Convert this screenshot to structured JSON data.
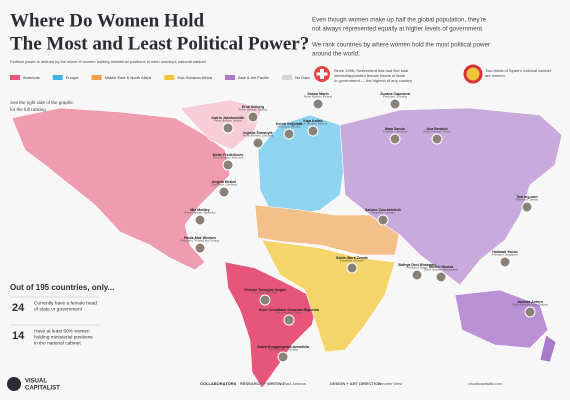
{
  "header": {
    "title_line1": "Where Do Women Hold",
    "title_line2": "The Most and Least Political Power?",
    "subtitle": "Political power is defined by the share of women holding ministerial positions in each country's national cabinet."
  },
  "intro": [
    "Even though women make up half the global population, they're",
    "not always represented equally at higher levels of government.",
    "We rank countries by where women hold the most political power",
    "around the world."
  ],
  "callouts": [
    {
      "lines": [
        "Since 1996, Switzerland has had five total",
        "elected/appointed female heads of state",
        "or government — the highest of any country"
      ]
    },
    {
      "lines": [
        "Two-thirds of Spain's national cabinet",
        "are women."
      ]
    }
  ],
  "legend": [
    {
      "name": "Americas",
      "color": "#e8557a"
    },
    {
      "name": "Europe",
      "color": "#41b4e3"
    },
    {
      "name": "Middle East & North Africa",
      "color": "#f0a048"
    },
    {
      "name": "Sub-Saharan Africa",
      "color": "#f2c53d"
    },
    {
      "name": "Asia & the Pacific",
      "color": "#a77bc9"
    },
    {
      "name": "No Data",
      "color": "#d5d5d5"
    }
  ],
  "note": [
    "See the right side of the graphic",
    "for the full ranking"
  ],
  "leaders": [
    {
      "name": "Katrín Jakobsdóttir",
      "role": "Prime Minister, Iceland"
    },
    {
      "name": "Erna Solberg",
      "role": "Prime Minister, Norway"
    },
    {
      "name": "Sanna Marin",
      "role": "Prime Minister, Finland"
    },
    {
      "name": "Kaja Kallas",
      "role": "Prime Minister, Estonia"
    },
    {
      "name": "Kersti Kaljulaid",
      "role": "President, Estonia"
    },
    {
      "name": "Zuzana Čaputová",
      "role": "President, Slovakia"
    },
    {
      "name": "Ingrida Šimonytė",
      "role": "Prime Minister, Lithuania"
    },
    {
      "name": "Mette Frederiksen",
      "role": "Prime Minister, Denmark"
    },
    {
      "name": "Angela Merkel",
      "role": "Chancellor, Germany"
    },
    {
      "name": "Mia Mottley",
      "role": "Prime Minister, Barbados"
    },
    {
      "name": "Paula-Mae Weekes",
      "role": "President, Trinidad and Tobago"
    },
    {
      "name": "Maia Sandu",
      "role": "President, Moldova"
    },
    {
      "name": "Ana Brnabić",
      "role": "Prime Minister, Serbia"
    },
    {
      "name": "Salome Zourabichvili",
      "role": "President, Georgia"
    },
    {
      "name": "Tsai Ing-wen",
      "role": "President, Taiwan"
    },
    {
      "name": "Halimah Yacob",
      "role": "President, Singapore"
    },
    {
      "name": "Sheikh Hasina",
      "role": "Prime Minister, Bangladesh"
    },
    {
      "name": "Bidhya Devi Bhandari",
      "role": "President, Nepal"
    },
    {
      "name": "Sahle-Work Zewde",
      "role": "President, Ethiopia"
    },
    {
      "name": "Victoire Tomegah Dogbé",
      "role": "Prime Minister, Togo"
    },
    {
      "name": "Rose Christiane Ossouka Raponda",
      "role": "Prime Minister, Gabon"
    },
    {
      "name": "Saara Kuugongelwa-Amadhila",
      "role": "Prime Minister, Namibia"
    },
    {
      "name": "Jacinda Ardern",
      "role": "Prime Minister, New Zealand"
    }
  ],
  "stats": {
    "heading": "Out of 195 countries, only...",
    "items": [
      {
        "number": "24",
        "lines": [
          "Currently have a female head",
          "of state or government"
        ]
      },
      {
        "number": "14",
        "lines": [
          "Have at least 50% women",
          "holding ministerial positions",
          "in the national cabinet"
        ]
      }
    ]
  },
  "footer": {
    "brand_line1": "VISUAL",
    "brand_line2": "CAPITALIST",
    "collaborators": "COLLABORATORS",
    "research": "RESEARCH + WRITING",
    "research_names": "Raul Amoros",
    "design": "DESIGN + ART DIRECTION",
    "design_names": "Jennifer West",
    "social": "visualcapitalist.com"
  }
}
